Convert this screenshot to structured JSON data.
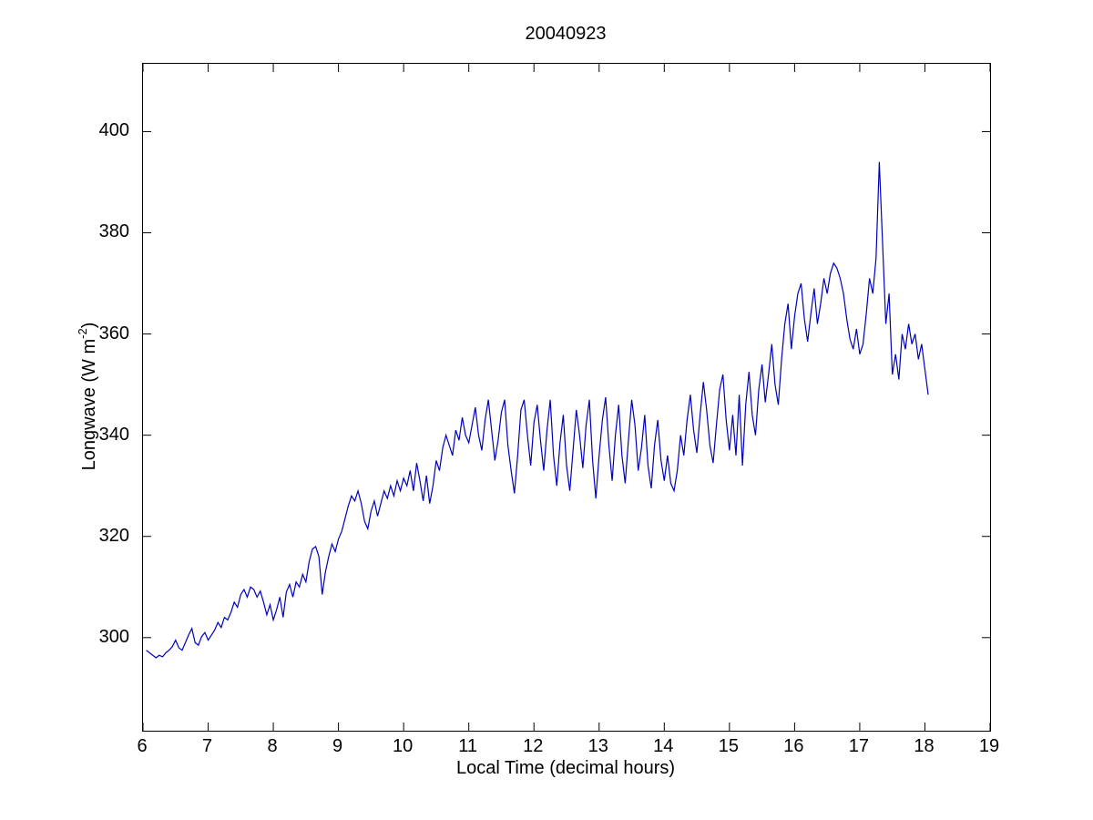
{
  "figure": {
    "title": "20040923",
    "background_color": "#ffffff",
    "axes_color": "#000000"
  },
  "chart_data": {
    "type": "line",
    "title": "20040923",
    "xlabel": "Local Time (decimal hours)",
    "ylabel": "Longwave (W m-2)",
    "ylabel_parts": {
      "prefix": "Longwave (W m",
      "superscript": "-2",
      "suffix": ")"
    },
    "xlim": [
      6,
      19
    ],
    "ylim": [
      281.6,
      413.4
    ],
    "xticks": [
      6,
      7,
      8,
      9,
      10,
      11,
      12,
      13,
      14,
      15,
      16,
      17,
      18,
      19
    ],
    "yticks": [
      300,
      320,
      340,
      360,
      380,
      400
    ],
    "grid": false,
    "legend": "none",
    "box": true,
    "tick_direction": "in",
    "line_color": "#0000bb",
    "series": [
      {
        "name": "longwave",
        "x_start": 6.05,
        "x_step": 0.05,
        "values": [
          297.5,
          297,
          296.5,
          296,
          296.5,
          296.2,
          297,
          297.5,
          298.2,
          299.5,
          298,
          297.5,
          299,
          300.5,
          301.8,
          299,
          298.5,
          300.2,
          301,
          299.5,
          300.5,
          301.5,
          303,
          302,
          304,
          303.5,
          305,
          307,
          306,
          308.5,
          309.5,
          308,
          310,
          309.5,
          308,
          309.2,
          307,
          304.5,
          306.5,
          303.5,
          305.5,
          308,
          304,
          309,
          310.5,
          308,
          311,
          310,
          312.5,
          311,
          315,
          317.5,
          318,
          316,
          308.5,
          313,
          316,
          318.5,
          317,
          319.5,
          321,
          323.5,
          326,
          328,
          327,
          329,
          326.5,
          323,
          321.5,
          325,
          327,
          324,
          326.5,
          329,
          327.5,
          330,
          328,
          331,
          329,
          331.5,
          330,
          333,
          329,
          334.5,
          331,
          327,
          332,
          326.5,
          330,
          335,
          333,
          337.5,
          340,
          338,
          336,
          341,
          339,
          343.5,
          340,
          338.5,
          342,
          345.5,
          340,
          337,
          343,
          347,
          341,
          335,
          339,
          344.5,
          347,
          338,
          333,
          328.5,
          336,
          345,
          347,
          340,
          334,
          342.5,
          346,
          339,
          333,
          341,
          347,
          336,
          330,
          338.5,
          344,
          334,
          329,
          337,
          345,
          340,
          333.5,
          342,
          347,
          335,
          327.5,
          336,
          343,
          347.5,
          338,
          331,
          340,
          346,
          336,
          330.5,
          339,
          347,
          342,
          333,
          337.5,
          344,
          334,
          329.5,
          338,
          343,
          335,
          331,
          336,
          330.5,
          329,
          333,
          340,
          336,
          343,
          348,
          341,
          336.5,
          344,
          350.5,
          345,
          338,
          334.5,
          342,
          349,
          352,
          343,
          337,
          344,
          336,
          348,
          334,
          346,
          352.5,
          344,
          340,
          349,
          354,
          346.5,
          352,
          358,
          350,
          346,
          355,
          362,
          366,
          357,
          363.5,
          368,
          370,
          363,
          358.5,
          364,
          369,
          362,
          366,
          371,
          368,
          372,
          374,
          373,
          371,
          368,
          363,
          359,
          357,
          361,
          356,
          358,
          364,
          371,
          368,
          375,
          394,
          378,
          362,
          368,
          352,
          356,
          351,
          360,
          357,
          362,
          358,
          360,
          355,
          358,
          353,
          348
        ]
      }
    ]
  }
}
